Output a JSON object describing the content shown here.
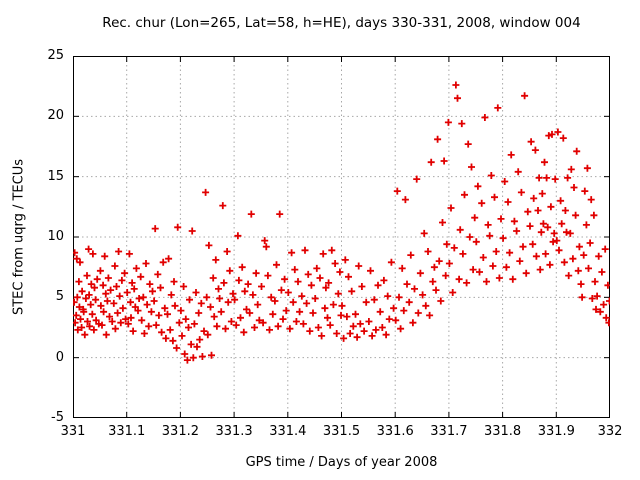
{
  "figure": {
    "background": "#ffffff",
    "text_color": "#000000"
  },
  "chart_data": {
    "type": "scatter",
    "title": "Rec. chur (Lon=265, Lat=58, h=HE), days 330-331, 2008, window 004",
    "xlabel": "GPS time / Days of year 2008",
    "ylabel": "STEC from uqrg / TECUs",
    "xlim": [
      331,
      332
    ],
    "ylim": [
      -5,
      25
    ],
    "x_ticks": {
      "values": [
        331,
        331.1,
        331.2,
        331.3,
        331.4,
        331.5,
        331.6,
        331.7,
        331.8,
        331.9,
        332
      ],
      "labels": [
        "331",
        "331.1",
        "331.2",
        "331.3",
        "331.4",
        "331.5",
        "331.6",
        "331.7",
        "331.8",
        "331.9",
        "332"
      ]
    },
    "y_ticks": {
      "values": [
        -5,
        0,
        5,
        10,
        15,
        20,
        25
      ],
      "labels": [
        "-5",
        "0",
        "5",
        "10",
        "15",
        "20",
        "25"
      ]
    },
    "grid": {
      "style": "dotted",
      "color": "#a8a8a8"
    },
    "border_color": "#000000",
    "legend": "none",
    "marker": {
      "shape": "plus",
      "color": "#e10000",
      "size": 7
    },
    "series_name": "STEC",
    "points": [
      [
        331.002,
        4.6
      ],
      [
        331.003,
        8.7
      ],
      [
        331.004,
        2.9
      ],
      [
        331.006,
        3.5
      ],
      [
        331.007,
        8.2
      ],
      [
        331.008,
        5.0
      ],
      [
        331.009,
        2.3
      ],
      [
        331.011,
        6.3
      ],
      [
        331.012,
        4.2
      ],
      [
        331.013,
        7.9
      ],
      [
        331.014,
        3.2
      ],
      [
        331.016,
        2.5
      ],
      [
        331.017,
        5.5
      ],
      [
        331.019,
        4.0
      ],
      [
        331.02,
        3.8
      ],
      [
        331.022,
        1.9
      ],
      [
        331.024,
        4.9
      ],
      [
        331.026,
        6.8
      ],
      [
        331.027,
        3.0
      ],
      [
        331.029,
        9.0
      ],
      [
        331.03,
        5.2
      ],
      [
        331.031,
        2.6
      ],
      [
        331.033,
        4.4
      ],
      [
        331.034,
        6.1
      ],
      [
        331.036,
        3.6
      ],
      [
        331.037,
        8.6
      ],
      [
        331.039,
        2.3
      ],
      [
        331.04,
        5.8
      ],
      [
        331.042,
        4.8
      ],
      [
        331.043,
        3.1
      ],
      [
        331.045,
        6.5
      ],
      [
        331.048,
        2.8
      ],
      [
        331.051,
        7.2
      ],
      [
        331.052,
        4.3
      ],
      [
        331.054,
        2.7
      ],
      [
        331.056,
        6.0
      ],
      [
        331.057,
        3.8
      ],
      [
        331.059,
        8.4
      ],
      [
        331.061,
        5.3
      ],
      [
        331.062,
        1.9
      ],
      [
        331.064,
        4.7
      ],
      [
        331.066,
        6.6
      ],
      [
        331.068,
        3.4
      ],
      [
        331.07,
        5.6
      ],
      [
        331.073,
        3.0
      ],
      [
        331.076,
        4.5
      ],
      [
        331.078,
        7.6
      ],
      [
        331.079,
        2.4
      ],
      [
        331.081,
        5.9
      ],
      [
        331.083,
        3.7
      ],
      [
        331.085,
        8.8
      ],
      [
        331.087,
        5.1
      ],
      [
        331.089,
        2.9
      ],
      [
        331.091,
        6.4
      ],
      [
        331.093,
        4.1
      ],
      [
        331.096,
        7.0
      ],
      [
        331.098,
        3.2
      ],
      [
        331.101,
        5.4
      ],
      [
        331.103,
        2.8
      ],
      [
        331.105,
        8.6
      ],
      [
        331.107,
        4.6
      ],
      [
        331.108,
        3.3
      ],
      [
        331.11,
        6.2
      ],
      [
        331.112,
        2.2
      ],
      [
        331.114,
        5.7
      ],
      [
        331.116,
        4.2
      ],
      [
        331.118,
        7.4
      ],
      [
        331.121,
        3.9
      ],
      [
        331.123,
        4.9
      ],
      [
        331.126,
        6.7
      ],
      [
        331.128,
        3.1
      ],
      [
        331.131,
        5.0
      ],
      [
        331.133,
        2.0
      ],
      [
        331.136,
        7.8
      ],
      [
        331.138,
        4.4
      ],
      [
        331.141,
        2.6
      ],
      [
        331.143,
        6.1
      ],
      [
        331.146,
        3.8
      ],
      [
        331.148,
        5.5
      ],
      [
        331.151,
        4.7
      ],
      [
        331.153,
        10.7
      ],
      [
        331.155,
        2.7
      ],
      [
        331.158,
        6.9
      ],
      [
        331.16,
        3.5
      ],
      [
        331.163,
        5.8
      ],
      [
        331.165,
        2.1
      ],
      [
        331.168,
        7.9
      ],
      [
        331.171,
        4.1
      ],
      [
        331.173,
        1.6
      ],
      [
        331.176,
        3.6
      ],
      [
        331.178,
        8.2
      ],
      [
        331.181,
        2.3
      ],
      [
        331.183,
        5.2
      ],
      [
        331.186,
        1.4
      ],
      [
        331.188,
        6.3
      ],
      [
        331.19,
        4.3
      ],
      [
        331.193,
        0.8
      ],
      [
        331.195,
        10.8
      ],
      [
        331.198,
        2.9
      ],
      [
        331.201,
        3.9
      ],
      [
        331.203,
        1.8
      ],
      [
        331.206,
        5.9
      ],
      [
        331.208,
        0.3
      ],
      [
        331.21,
        3.2
      ],
      [
        331.213,
        -0.2
      ],
      [
        331.215,
        2.5
      ],
      [
        331.217,
        4.8
      ],
      [
        331.22,
        1.1
      ],
      [
        331.222,
        10.5
      ],
      [
        331.224,
        0.0
      ],
      [
        331.226,
        2.8
      ],
      [
        331.229,
        5.4
      ],
      [
        331.231,
        0.9
      ],
      [
        331.234,
        3.7
      ],
      [
        331.236,
        1.5
      ],
      [
        331.239,
        4.5
      ],
      [
        331.241,
        0.1
      ],
      [
        331.244,
        2.2
      ],
      [
        331.247,
        13.7
      ],
      [
        331.249,
        5.0
      ],
      [
        331.251,
        1.9
      ],
      [
        331.253,
        9.3
      ],
      [
        331.256,
        4.2
      ],
      [
        331.258,
        0.2
      ],
      [
        331.261,
        6.6
      ],
      [
        331.263,
        3.4
      ],
      [
        331.266,
        8.1
      ],
      [
        331.268,
        2.6
      ],
      [
        331.271,
        5.7
      ],
      [
        331.273,
        4.9
      ],
      [
        331.276,
        3.8
      ],
      [
        331.279,
        12.6
      ],
      [
        331.281,
        6.2
      ],
      [
        331.284,
        2.4
      ],
      [
        331.287,
        8.8
      ],
      [
        331.289,
        4.6
      ],
      [
        331.292,
        7.2
      ],
      [
        331.295,
        3.0
      ],
      [
        331.298,
        5.3
      ],
      [
        331.301,
        4.8
      ],
      [
        331.304,
        2.7
      ],
      [
        331.307,
        10.1
      ],
      [
        331.309,
        6.4
      ],
      [
        331.312,
        3.3
      ],
      [
        331.315,
        7.5
      ],
      [
        331.318,
        2.1
      ],
      [
        331.32,
        5.5
      ],
      [
        331.323,
        4.0
      ],
      [
        331.326,
        6.1
      ],
      [
        331.329,
        3.7
      ],
      [
        331.332,
        11.9
      ],
      [
        331.335,
        5.2
      ],
      [
        331.338,
        2.5
      ],
      [
        331.341,
        7.0
      ],
      [
        331.344,
        4.4
      ],
      [
        331.347,
        3.1
      ],
      [
        331.351,
        5.9
      ],
      [
        331.354,
        2.9
      ],
      [
        331.357,
        9.7
      ],
      [
        331.36,
        9.2
      ],
      [
        331.363,
        6.8
      ],
      [
        331.366,
        2.3
      ],
      [
        331.369,
        5.0
      ],
      [
        331.372,
        3.6
      ],
      [
        331.376,
        4.7
      ],
      [
        331.379,
        7.7
      ],
      [
        331.382,
        2.6
      ],
      [
        331.385,
        11.9
      ],
      [
        331.388,
        5.6
      ],
      [
        331.391,
        3.2
      ],
      [
        331.394,
        6.5
      ],
      [
        331.397,
        3.9
      ],
      [
        331.401,
        5.4
      ],
      [
        331.404,
        2.4
      ],
      [
        331.407,
        8.7
      ],
      [
        331.41,
        4.6
      ],
      [
        331.413,
        7.3
      ],
      [
        331.416,
        3.0
      ],
      [
        331.419,
        6.3
      ],
      [
        331.422,
        3.8
      ],
      [
        331.426,
        5.1
      ],
      [
        331.429,
        2.8
      ],
      [
        331.432,
        8.9
      ],
      [
        331.435,
        4.5
      ],
      [
        331.438,
        6.9
      ],
      [
        331.441,
        2.2
      ],
      [
        331.444,
        6.0
      ],
      [
        331.447,
        3.7
      ],
      [
        331.451,
        4.9
      ],
      [
        331.454,
        7.4
      ],
      [
        331.457,
        2.5
      ],
      [
        331.46,
        6.6
      ],
      [
        331.463,
        1.8
      ],
      [
        331.466,
        8.6
      ],
      [
        331.469,
        4.1
      ],
      [
        331.471,
        5.8
      ],
      [
        331.474,
        3.3
      ],
      [
        331.476,
        6.2
      ],
      [
        331.479,
        2.7
      ],
      [
        331.482,
        8.9
      ],
      [
        331.485,
        4.4
      ],
      [
        331.488,
        7.8
      ],
      [
        331.491,
        2.0
      ],
      [
        331.494,
        5.3
      ],
      [
        331.497,
        7.1
      ],
      [
        331.499,
        3.5
      ],
      [
        331.501,
        4.3
      ],
      [
        331.504,
        1.6
      ],
      [
        331.507,
        8.1
      ],
      [
        331.51,
        3.4
      ],
      [
        331.513,
        6.7
      ],
      [
        331.516,
        2.0
      ],
      [
        331.519,
        5.5
      ],
      [
        331.522,
        2.6
      ],
      [
        331.526,
        3.6
      ],
      [
        331.529,
        1.7
      ],
      [
        331.532,
        7.6
      ],
      [
        331.535,
        2.8
      ],
      [
        331.538,
        5.9
      ],
      [
        331.542,
        2.2
      ],
      [
        331.546,
        4.6
      ],
      [
        331.551,
        3.0
      ],
      [
        331.554,
        7.2
      ],
      [
        331.557,
        1.8
      ],
      [
        331.561,
        4.8
      ],
      [
        331.564,
        2.3
      ],
      [
        331.568,
        6.0
      ],
      [
        331.572,
        3.8
      ],
      [
        331.576,
        2.5
      ],
      [
        331.579,
        6.4
      ],
      [
        331.583,
        1.9
      ],
      [
        331.586,
        5.1
      ],
      [
        331.589,
        3.2
      ],
      [
        331.593,
        7.9
      ],
      [
        331.597,
        4.1
      ],
      [
        331.601,
        3.1
      ],
      [
        331.604,
        13.8
      ],
      [
        331.607,
        5.0
      ],
      [
        331.61,
        2.4
      ],
      [
        331.613,
        7.4
      ],
      [
        331.616,
        3.9
      ],
      [
        331.619,
        13.1
      ],
      [
        331.622,
        6.1
      ],
      [
        331.626,
        4.6
      ],
      [
        331.629,
        8.5
      ],
      [
        331.633,
        2.9
      ],
      [
        331.636,
        5.7
      ],
      [
        331.64,
        14.8
      ],
      [
        331.643,
        3.7
      ],
      [
        331.647,
        7.0
      ],
      [
        331.651,
        5.2
      ],
      [
        331.654,
        10.3
      ],
      [
        331.657,
        4.3
      ],
      [
        331.661,
        8.8
      ],
      [
        331.664,
        3.5
      ],
      [
        331.667,
        16.2
      ],
      [
        331.67,
        6.3
      ],
      [
        331.673,
        7.5
      ],
      [
        331.676,
        5.6
      ],
      [
        331.679,
        18.1
      ],
      [
        331.682,
        8.0
      ],
      [
        331.685,
        4.7
      ],
      [
        331.688,
        11.2
      ],
      [
        331.691,
        16.3
      ],
      [
        331.694,
        6.8
      ],
      [
        331.696,
        9.4
      ],
      [
        331.699,
        19.5
      ],
      [
        331.701,
        7.8
      ],
      [
        331.704,
        12.4
      ],
      [
        331.707,
        5.4
      ],
      [
        331.71,
        9.1
      ],
      [
        331.713,
        22.6
      ],
      [
        331.716,
        21.5
      ],
      [
        331.719,
        6.5
      ],
      [
        331.721,
        10.6
      ],
      [
        331.724,
        19.4
      ],
      [
        331.726,
        8.6
      ],
      [
        331.729,
        13.5
      ],
      [
        331.733,
        6.2
      ],
      [
        331.736,
        17.7
      ],
      [
        331.739,
        10.0
      ],
      [
        331.742,
        15.8
      ],
      [
        331.745,
        7.3
      ],
      [
        331.748,
        11.6
      ],
      [
        331.751,
        9.6
      ],
      [
        331.754,
        14.2
      ],
      [
        331.757,
        7.1
      ],
      [
        331.761,
        12.8
      ],
      [
        331.764,
        8.3
      ],
      [
        331.767,
        19.9
      ],
      [
        331.77,
        6.3
      ],
      [
        331.773,
        11.0
      ],
      [
        331.776,
        10.1
      ],
      [
        331.779,
        15.1
      ],
      [
        331.782,
        7.6
      ],
      [
        331.785,
        13.3
      ],
      [
        331.788,
        8.8
      ],
      [
        331.791,
        20.7
      ],
      [
        331.794,
        6.6
      ],
      [
        331.797,
        11.5
      ],
      [
        331.801,
        9.9
      ],
      [
        331.804,
        14.6
      ],
      [
        331.807,
        7.5
      ],
      [
        331.81,
        12.9
      ],
      [
        331.813,
        8.7
      ],
      [
        331.816,
        16.8
      ],
      [
        331.819,
        6.5
      ],
      [
        331.822,
        11.3
      ],
      [
        331.826,
        10.5
      ],
      [
        331.829,
        15.4
      ],
      [
        331.832,
        8.0
      ],
      [
        331.835,
        13.7
      ],
      [
        331.838,
        9.2
      ],
      [
        331.841,
        21.7
      ],
      [
        331.844,
        7.0
      ],
      [
        331.847,
        12.1
      ],
      [
        331.851,
        10.9
      ],
      [
        331.853,
        17.9
      ],
      [
        331.856,
        9.4
      ],
      [
        331.858,
        13.2
      ],
      [
        331.861,
        17.2
      ],
      [
        331.863,
        8.4
      ],
      [
        331.866,
        12.2
      ],
      [
        331.868,
        14.9
      ],
      [
        331.87,
        7.3
      ],
      [
        331.872,
        10.4
      ],
      [
        331.874,
        13.6
      ],
      [
        331.876,
        11.1
      ],
      [
        331.878,
        16.2
      ],
      [
        331.88,
        8.6
      ],
      [
        331.882,
        14.9
      ],
      [
        331.884,
        10.8
      ],
      [
        331.886,
        18.4
      ],
      [
        331.888,
        7.7
      ],
      [
        331.89,
        12.5
      ],
      [
        331.892,
        18.5
      ],
      [
        331.894,
        9.6
      ],
      [
        331.896,
        10.3
      ],
      [
        331.898,
        14.8
      ],
      [
        331.901,
        9.7
      ],
      [
        331.903,
        18.7
      ],
      [
        331.905,
        8.9
      ],
      [
        331.908,
        13.0
      ],
      [
        331.91,
        11.1
      ],
      [
        331.913,
        18.2
      ],
      [
        331.915,
        7.9
      ],
      [
        331.917,
        12.2
      ],
      [
        331.919,
        10.4
      ],
      [
        331.921,
        14.9
      ],
      [
        331.923,
        6.8
      ],
      [
        331.926,
        10.3
      ],
      [
        331.928,
        15.6
      ],
      [
        331.931,
        8.2
      ],
      [
        331.933,
        14.1
      ],
      [
        331.936,
        11.8
      ],
      [
        331.938,
        17.1
      ],
      [
        331.941,
        7.2
      ],
      [
        331.943,
        9.2
      ],
      [
        331.946,
        6.1
      ],
      [
        331.948,
        5.0
      ],
      [
        331.951,
        8.5
      ],
      [
        331.953,
        13.8
      ],
      [
        331.956,
        11.0
      ],
      [
        331.958,
        15.7
      ],
      [
        331.96,
        7.4
      ],
      [
        331.963,
        9.5
      ],
      [
        331.965,
        13.1
      ],
      [
        331.967,
        4.9
      ],
      [
        331.97,
        11.8
      ],
      [
        331.972,
        6.3
      ],
      [
        331.974,
        4.0
      ],
      [
        331.976,
        5.1
      ],
      [
        331.979,
        8.4
      ],
      [
        331.982,
        3.8
      ],
      [
        331.985,
        7.1
      ],
      [
        331.988,
        4.4
      ],
      [
        331.991,
        9.0
      ],
      [
        331.993,
        3.3
      ],
      [
        331.996,
        6.0
      ],
      [
        331.998,
        2.9
      ],
      [
        331.999,
        4.7
      ]
    ]
  }
}
